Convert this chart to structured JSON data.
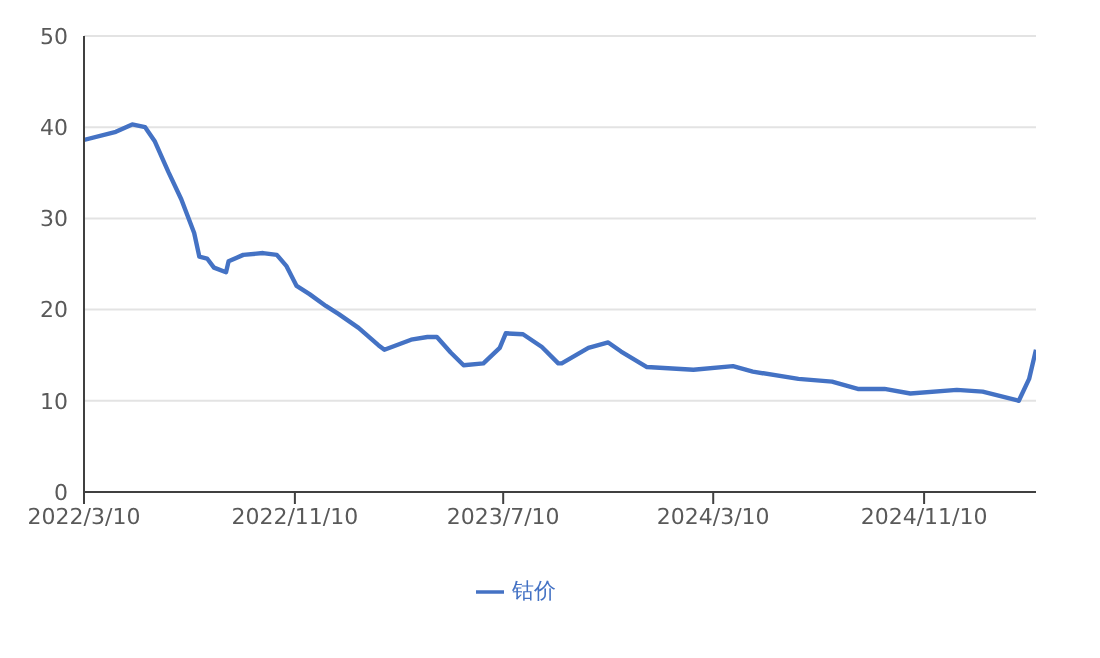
{
  "chart_data": {
    "type": "line",
    "x": [
      "2022-03-10",
      "2022-04-16",
      "2022-05-05",
      "2022-05-20",
      "2022-05-31",
      "2022-06-16",
      "2022-07-01",
      "2022-07-16",
      "2022-07-22",
      "2022-07-31",
      "2022-08-08",
      "2022-08-22",
      "2022-08-25",
      "2022-09-11",
      "2022-10-04",
      "2022-10-20",
      "2022-10-31",
      "2022-11-12",
      "2022-11-27",
      "2022-12-16",
      "2022-12-31",
      "2023-01-23",
      "2023-02-15",
      "2023-02-22",
      "2023-03-25",
      "2023-04-13",
      "2023-04-24",
      "2023-05-10",
      "2023-05-25",
      "2023-06-17",
      "2023-07-06",
      "2023-07-13",
      "2023-08-02",
      "2023-08-24",
      "2023-09-12",
      "2023-09-16",
      "2023-10-17",
      "2023-11-09",
      "2023-11-24",
      "2023-12-24",
      "2024-02-16",
      "2024-04-02",
      "2024-04-25",
      "2024-06-17",
      "2024-07-26",
      "2024-08-25",
      "2024-09-25",
      "2024-10-25",
      "2024-12-18",
      "2025-01-17",
      "2025-02-28",
      "2025-03-12",
      "2025-03-20"
    ],
    "series": [
      {
        "name": "钴价",
        "color": "#4472c4",
        "values": [
          38.6,
          39.5,
          40.3,
          40.0,
          38.5,
          35.1,
          32.1,
          28.4,
          25.8,
          25.6,
          24.6,
          24.1,
          25.3,
          26.0,
          26.2,
          26.0,
          24.8,
          22.6,
          21.7,
          20.4,
          19.5,
          18.0,
          16.1,
          15.6,
          16.7,
          17.0,
          17.0,
          15.3,
          13.9,
          14.1,
          15.8,
          17.4,
          17.3,
          15.9,
          14.1,
          14.1,
          15.8,
          16.4,
          15.4,
          13.7,
          13.4,
          13.8,
          13.2,
          12.4,
          12.1,
          11.3,
          11.3,
          10.8,
          11.2,
          11.0,
          10.0,
          12.4,
          15.6
        ]
      }
    ],
    "xlim": [
      "2022-03-10",
      "2025-03-20"
    ],
    "xticks": [
      {
        "value": "2022-03-10",
        "label": "2022/3/10"
      },
      {
        "value": "2022-11-10",
        "label": "2022/11/10"
      },
      {
        "value": "2023-07-10",
        "label": "2023/7/10"
      },
      {
        "value": "2024-03-10",
        "label": "2024/3/10"
      },
      {
        "value": "2024-11-10",
        "label": "2024/11/10"
      }
    ],
    "ylim": [
      0,
      50
    ],
    "yticks": [
      0,
      10,
      20,
      30,
      40,
      50
    ],
    "grid": "y",
    "legend": "bottom",
    "marker": "none",
    "line_style": "solid"
  }
}
